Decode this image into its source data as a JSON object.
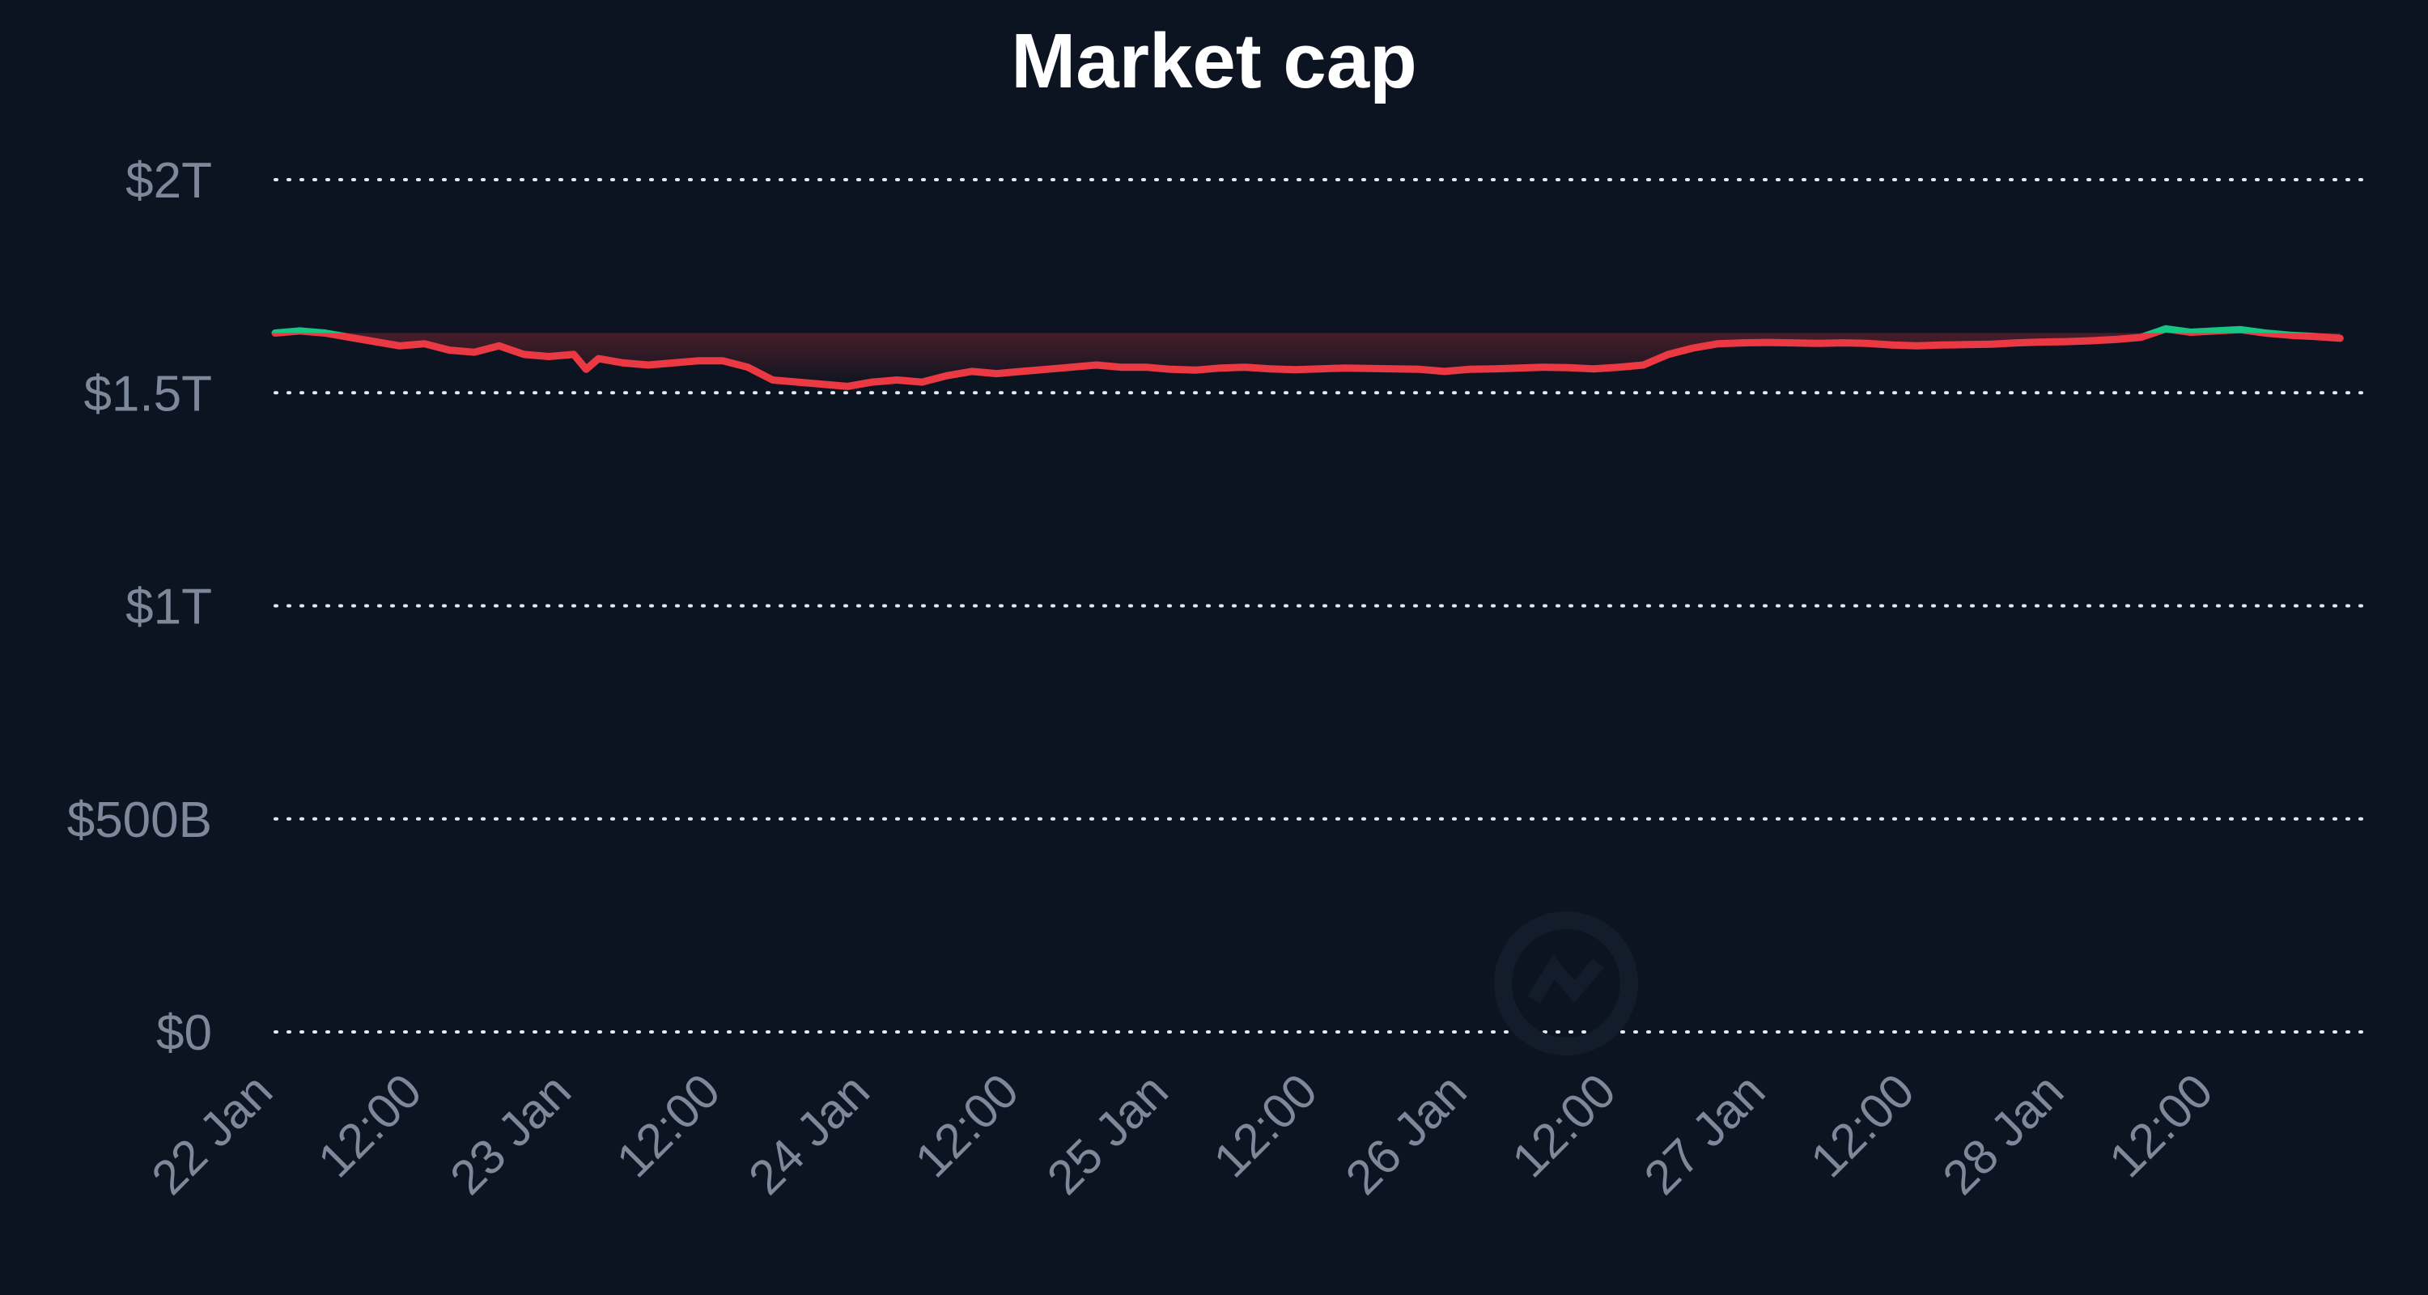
{
  "chart_data": {
    "type": "line",
    "title": "Market cap",
    "xlabel": "",
    "ylabel": "",
    "ylim": [
      0,
      2000000000000
    ],
    "y_ticks": [
      {
        "value": 0,
        "label": "$0"
      },
      {
        "value": 500000000000,
        "label": "$500B"
      },
      {
        "value": 1000000000000,
        "label": "$1T"
      },
      {
        "value": 1500000000000,
        "label": "$1.5T"
      },
      {
        "value": 2000000000000,
        "label": "$2T"
      }
    ],
    "x_ticks": [
      {
        "value": 0,
        "label": "22 Jan"
      },
      {
        "value": 12,
        "label": "12:00"
      },
      {
        "value": 24,
        "label": "23 Jan"
      },
      {
        "value": 36,
        "label": "12:00"
      },
      {
        "value": 48,
        "label": "24 Jan"
      },
      {
        "value": 60,
        "label": "12:00"
      },
      {
        "value": 72,
        "label": "25 Jan"
      },
      {
        "value": 84,
        "label": "12:00"
      },
      {
        "value": 96,
        "label": "26 Jan"
      },
      {
        "value": 108,
        "label": "12:00"
      },
      {
        "value": 120,
        "label": "27 Jan"
      },
      {
        "value": 132,
        "label": "12:00"
      },
      {
        "value": 144,
        "label": "28 Jan"
      },
      {
        "value": 156,
        "label": "12:00"
      }
    ],
    "xlim": [
      0,
      168
    ],
    "grid": true,
    "baseline": 1640000000000,
    "colors": {
      "up": "#16c784",
      "down": "#ea3943",
      "background": "#0d1421",
      "grid": "#e6e9ee",
      "tick": "#7d889b",
      "title": "#ffffff"
    },
    "series": [
      {
        "x": [
          0,
          2,
          4,
          6,
          8,
          10,
          12,
          14,
          16,
          18,
          20,
          22,
          24,
          25,
          26,
          28,
          30,
          32,
          34,
          36,
          38,
          40,
          42,
          44,
          46,
          48,
          50,
          52,
          54,
          56,
          58,
          60,
          62,
          64,
          66,
          68,
          70,
          72,
          74,
          76,
          78,
          80,
          82,
          84,
          86,
          88,
          90,
          92,
          94,
          96,
          98,
          100,
          102,
          104,
          106,
          108,
          110,
          112,
          114,
          116,
          118,
          120,
          122,
          124,
          126,
          128,
          130,
          132,
          134,
          136,
          138,
          140,
          142,
          144,
          146,
          148,
          150,
          152,
          154,
          156,
          158,
          160,
          162,
          164,
          166
        ],
        "values": [
          1640000000000,
          1645000000000,
          1640000000000,
          1630000000000,
          1620000000000,
          1610000000000,
          1615000000000,
          1600000000000,
          1595000000000,
          1610000000000,
          1590000000000,
          1585000000000,
          1590000000000,
          1555000000000,
          1580000000000,
          1570000000000,
          1565000000000,
          1570000000000,
          1575000000000,
          1575000000000,
          1560000000000,
          1530000000000,
          1525000000000,
          1520000000000,
          1515000000000,
          1525000000000,
          1530000000000,
          1525000000000,
          1540000000000,
          1550000000000,
          1545000000000,
          1550000000000,
          1555000000000,
          1560000000000,
          1565000000000,
          1560000000000,
          1560000000000,
          1555000000000,
          1553000000000,
          1558000000000,
          1560000000000,
          1556000000000,
          1554000000000,
          1556000000000,
          1558000000000,
          1557000000000,
          1556000000000,
          1555000000000,
          1550000000000,
          1555000000000,
          1556000000000,
          1558000000000,
          1560000000000,
          1559000000000,
          1556000000000,
          1560000000000,
          1565000000000,
          1590000000000,
          1605000000000,
          1615000000000,
          1617000000000,
          1618000000000,
          1617000000000,
          1616000000000,
          1617000000000,
          1616000000000,
          1612000000000,
          1610000000000,
          1612000000000,
          1613000000000,
          1614000000000,
          1617000000000,
          1619000000000,
          1620000000000,
          1622000000000,
          1625000000000,
          1630000000000,
          1650000000000,
          1642000000000,
          1645000000000,
          1648000000000,
          1640000000000,
          1635000000000,
          1632000000000,
          1628000000000
        ]
      }
    ]
  },
  "watermark": {
    "text": "",
    "icon": "coinmarketcap-logo-icon"
  }
}
